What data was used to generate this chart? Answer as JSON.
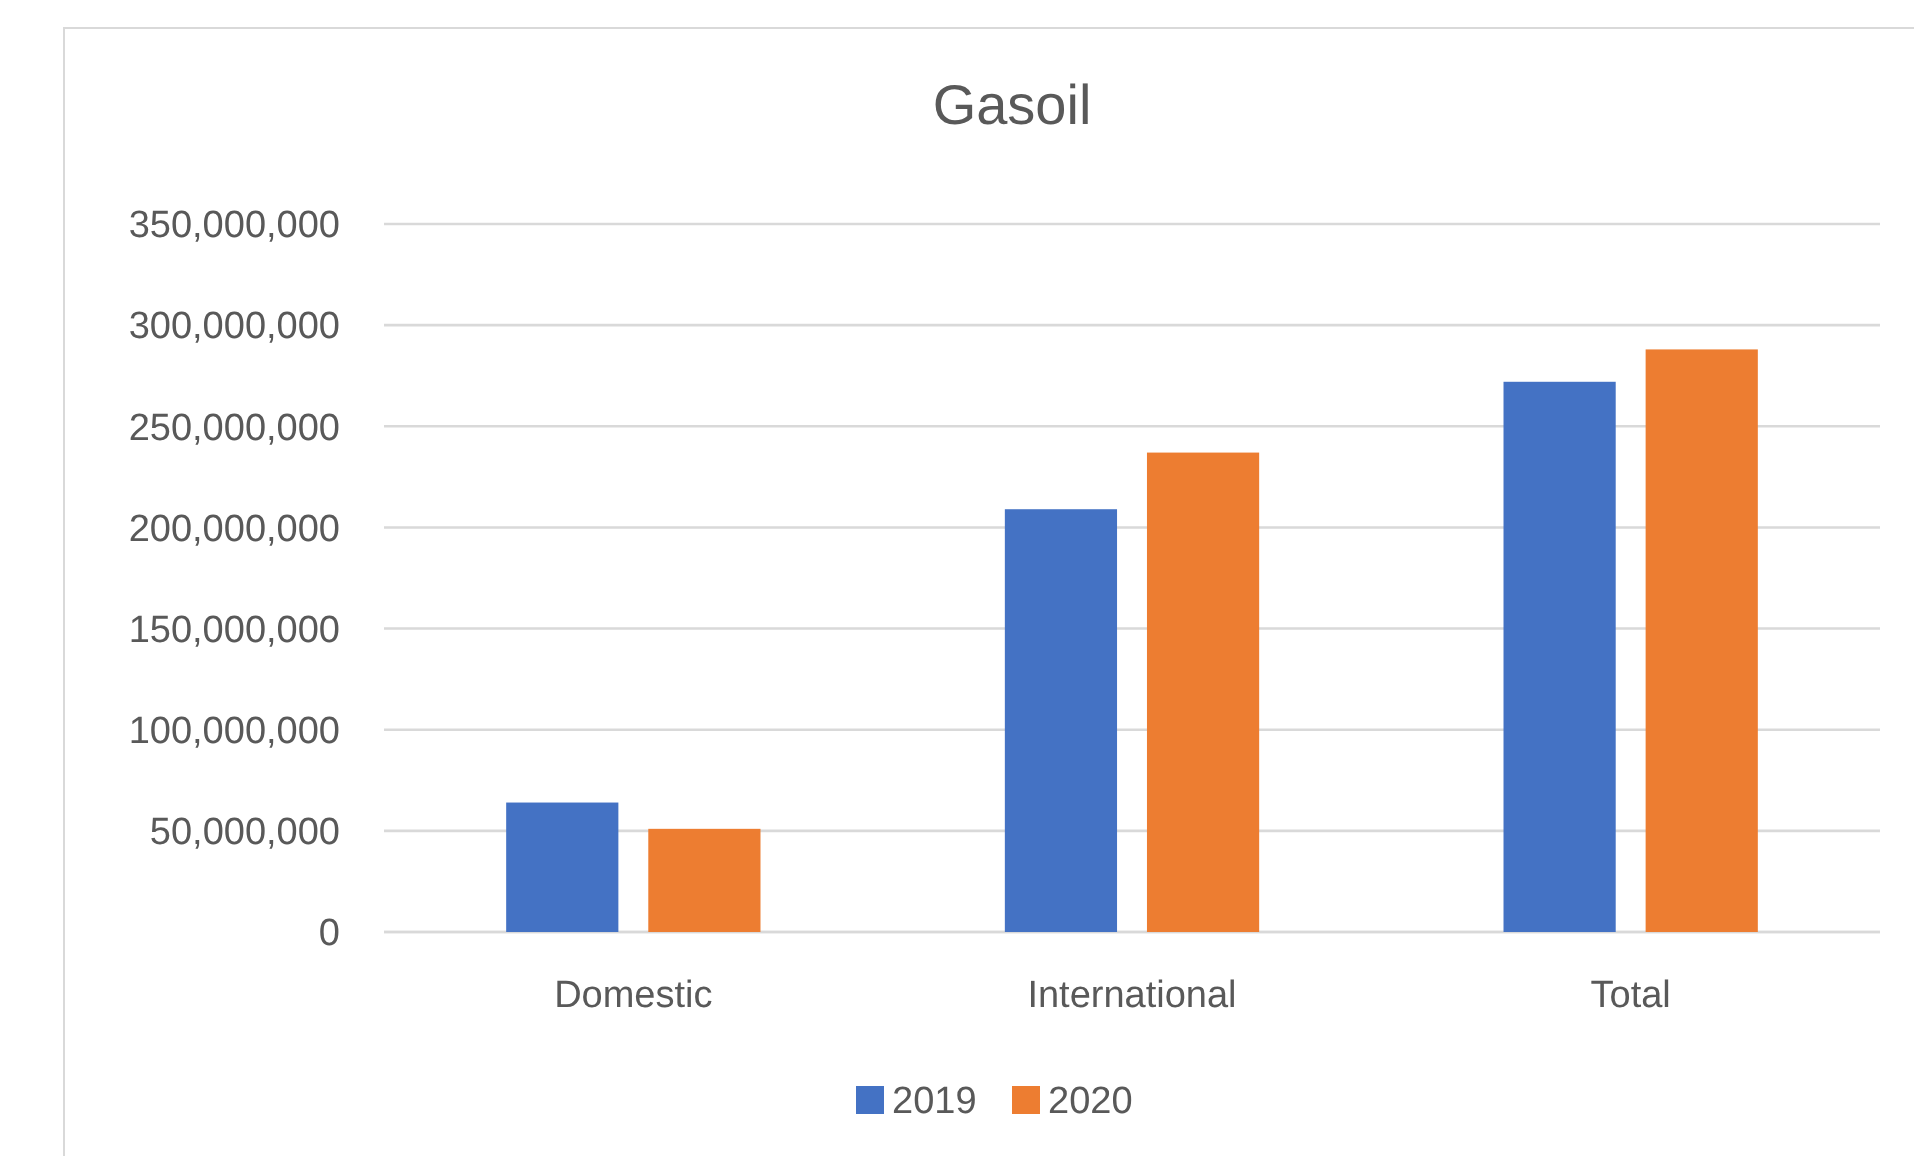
{
  "chart_data": {
    "type": "bar",
    "title": "Gasoil",
    "categories": [
      "Domestic",
      "International",
      "Total"
    ],
    "series": [
      {
        "name": "2019",
        "color": "#4472c4",
        "values": [
          64000000,
          209000000,
          272000000
        ]
      },
      {
        "name": "2020",
        "color": "#ed7d31",
        "values": [
          51000000,
          237000000,
          288000000
        ]
      }
    ],
    "ylim": [
      0,
      350000000
    ],
    "yticks": [
      {
        "value": 0,
        "label": "0"
      },
      {
        "value": 50000000,
        "label": "50,000,000"
      },
      {
        "value": 100000000,
        "label": "100,000,000"
      },
      {
        "value": 150000000,
        "label": "150,000,000"
      },
      {
        "value": 200000000,
        "label": "200,000,000"
      },
      {
        "value": 250000000,
        "label": "250,000,000"
      },
      {
        "value": 300000000,
        "label": "300,000,000"
      },
      {
        "value": 350000000,
        "label": "350,000,000"
      }
    ],
    "grid": "y",
    "legend": "bottom"
  }
}
